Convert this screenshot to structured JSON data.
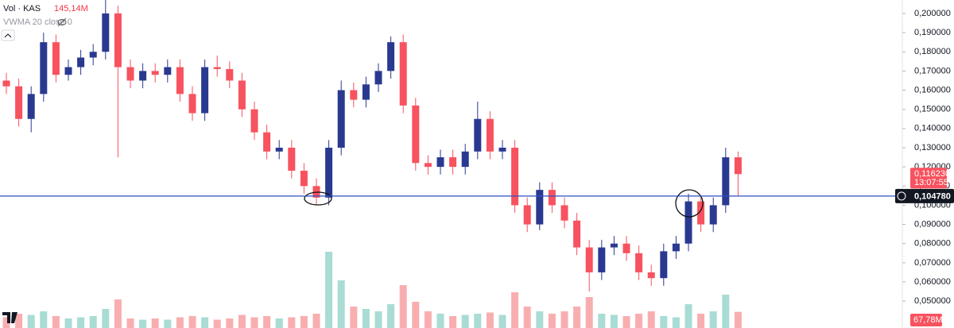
{
  "chart_data": {
    "type": "candlestick",
    "legend": {
      "symbol": "Vol · KAS",
      "volume": "145,14M",
      "indicator": "VWMA 20 close 0"
    },
    "open": [
      0.165,
      0.162,
      0.145,
      0.158,
      0.185,
      0.168,
      0.172,
      0.177,
      0.18,
      0.2,
      0.172,
      0.165,
      0.17,
      0.168,
      0.172,
      0.158,
      0.148,
      0.172,
      0.171,
      0.165,
      0.15,
      0.138,
      0.128,
      0.13,
      0.118,
      0.11,
      0.104,
      0.13,
      0.16,
      0.155,
      0.163,
      0.17,
      0.185,
      0.152,
      0.122,
      0.12,
      0.125,
      0.12,
      0.128,
      0.145,
      0.128,
      0.13,
      0.1,
      0.09,
      0.108,
      0.1,
      0.092,
      0.078,
      0.065,
      0.078,
      0.08,
      0.075,
      0.065,
      0.062,
      0.076,
      0.08,
      0.102,
      0.09,
      0.1,
      0.125
    ],
    "high": [
      0.169,
      0.166,
      0.162,
      0.19,
      0.189,
      0.176,
      0.181,
      0.184,
      0.207,
      0.204,
      0.176,
      0.174,
      0.174,
      0.176,
      0.176,
      0.162,
      0.176,
      0.178,
      0.175,
      0.169,
      0.154,
      0.142,
      0.134,
      0.134,
      0.122,
      0.114,
      0.134,
      0.165,
      0.164,
      0.167,
      0.174,
      0.188,
      0.189,
      0.156,
      0.126,
      0.129,
      0.129,
      0.132,
      0.154,
      0.149,
      0.134,
      0.134,
      0.104,
      0.112,
      0.112,
      0.104,
      0.096,
      0.082,
      0.082,
      0.084,
      0.084,
      0.079,
      0.069,
      0.08,
      0.084,
      0.106,
      0.105,
      0.104,
      0.13,
      0.128
    ],
    "low": [
      0.158,
      0.141,
      0.138,
      0.154,
      0.164,
      0.165,
      0.168,
      0.173,
      0.176,
      0.125,
      0.161,
      0.161,
      0.164,
      0.164,
      0.154,
      0.144,
      0.144,
      0.167,
      0.161,
      0.146,
      0.134,
      0.124,
      0.124,
      0.114,
      0.106,
      0.1,
      0.1,
      0.126,
      0.151,
      0.151,
      0.159,
      0.166,
      0.148,
      0.118,
      0.116,
      0.116,
      0.116,
      0.116,
      0.124,
      0.124,
      0.124,
      0.096,
      0.086,
      0.087,
      0.096,
      0.088,
      0.074,
      0.055,
      0.061,
      0.074,
      0.071,
      0.061,
      0.058,
      0.058,
      0.072,
      0.076,
      0.086,
      0.086,
      0.096,
      0.105
    ],
    "close": [
      0.162,
      0.145,
      0.158,
      0.185,
      0.168,
      0.172,
      0.177,
      0.18,
      0.2,
      0.172,
      0.165,
      0.17,
      0.168,
      0.172,
      0.158,
      0.148,
      0.172,
      0.171,
      0.165,
      0.15,
      0.138,
      0.128,
      0.13,
      0.118,
      0.11,
      0.104,
      0.13,
      0.16,
      0.155,
      0.163,
      0.17,
      0.185,
      0.152,
      0.122,
      0.12,
      0.125,
      0.12,
      0.128,
      0.145,
      0.128,
      0.13,
      0.1,
      0.09,
      0.108,
      0.1,
      0.092,
      0.078,
      0.065,
      0.078,
      0.08,
      0.075,
      0.065,
      0.062,
      0.076,
      0.08,
      0.102,
      0.09,
      0.1,
      0.125,
      0.11623
    ],
    "volume": [
      45,
      60,
      55,
      70,
      50,
      40,
      45,
      50,
      80,
      120,
      40,
      35,
      40,
      35,
      45,
      50,
      45,
      35,
      40,
      55,
      45,
      50,
      40,
      45,
      50,
      60,
      320,
      200,
      90,
      80,
      70,
      100,
      180,
      110,
      70,
      60,
      50,
      55,
      60,
      65,
      55,
      150,
      90,
      70,
      60,
      70,
      90,
      130,
      60,
      55,
      50,
      60,
      70,
      50,
      45,
      100,
      60,
      70,
      140,
      67.78
    ],
    "volume_label": "67,78M",
    "up_color": "#2a3990",
    "down_color": "#f7525f",
    "volume_up_color": "#a8dcd4",
    "volume_down_color": "#f8aeb0",
    "ylim": [
      0.036,
      0.207
    ],
    "vlim": [
      0,
      1377
    ],
    "yticks": [
      {
        "value": 0.05,
        "label": "0,050000"
      },
      {
        "value": 0.06,
        "label": "0,060000"
      },
      {
        "value": 0.07,
        "label": "0,070000"
      },
      {
        "value": 0.08,
        "label": "0,080000"
      },
      {
        "value": 0.09,
        "label": "0,090000"
      },
      {
        "value": 0.1,
        "label": "0,100000"
      },
      {
        "value": 0.11,
        "label": "0,110000"
      },
      {
        "value": 0.12,
        "label": "0,120000"
      },
      {
        "value": 0.13,
        "label": "0,130000"
      },
      {
        "value": 0.14,
        "label": "0,140000"
      },
      {
        "value": 0.15,
        "label": "0,150000"
      },
      {
        "value": 0.16,
        "label": "0,160000"
      },
      {
        "value": 0.17,
        "label": "0,170000"
      },
      {
        "value": 0.18,
        "label": "0,180000"
      },
      {
        "value": 0.19,
        "label": "0,190000"
      },
      {
        "value": 0.2,
        "label": "0,200000"
      }
    ],
    "hline": {
      "value": 0.10478,
      "label": "0,104780",
      "color": "#2b4fc4"
    },
    "last_price": {
      "value": 0.11623,
      "label": "0,116230",
      "countdown": "13:07:55"
    }
  }
}
